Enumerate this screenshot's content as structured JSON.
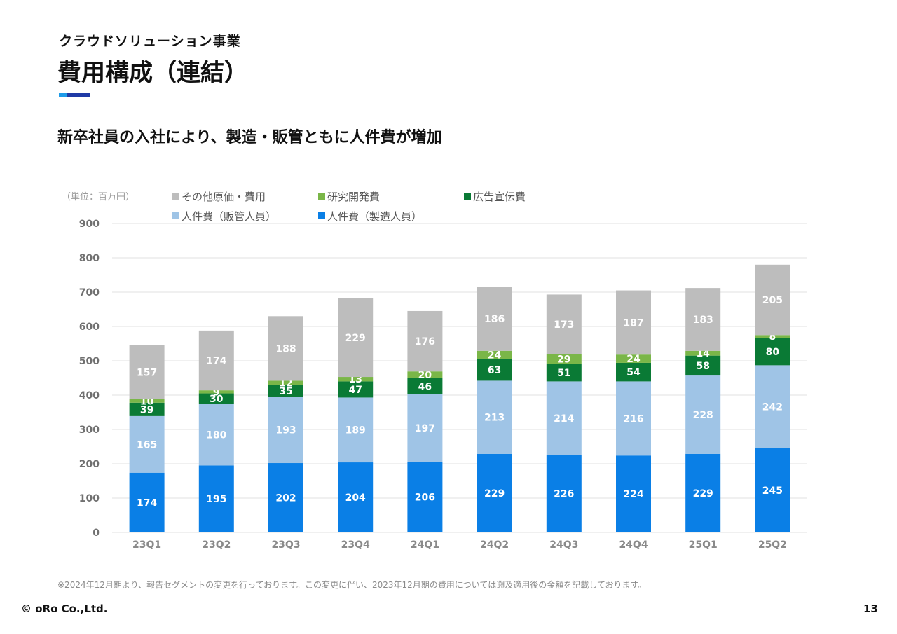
{
  "header": {
    "section": "クラウドソリューション事業",
    "title": "費用構成（連結）",
    "headline": "新卒社員の入社により、製造・販管ともに人件費が増加",
    "accent_colors": [
      "#1e9be8",
      "#1f3aa6"
    ]
  },
  "chart_data": {
    "type": "bar",
    "stacked": true,
    "unit_label": "（単位：百万円）",
    "categories": [
      "23Q1",
      "23Q2",
      "23Q3",
      "23Q4",
      "24Q1",
      "24Q2",
      "24Q3",
      "24Q4",
      "25Q1",
      "25Q2"
    ],
    "ylim": [
      0,
      900
    ],
    "yticks": [
      0,
      100,
      200,
      300,
      400,
      500,
      600,
      700,
      800,
      900
    ],
    "grid": true,
    "legend_position": "top",
    "series": [
      {
        "name": "人件費（製造人員）",
        "color": "#0a7fe6",
        "label_color": "#ffffff",
        "values": [
          174,
          195,
          202,
          204,
          206,
          229,
          226,
          224,
          229,
          245
        ]
      },
      {
        "name": "人件費（販管人員）",
        "color": "#9fc4e6",
        "label_color": "#ffffff",
        "values": [
          165,
          180,
          193,
          189,
          197,
          213,
          214,
          216,
          228,
          242
        ]
      },
      {
        "name": "広告宣伝費",
        "color": "#0a7a35",
        "label_color": "#ffffff",
        "values": [
          39,
          30,
          35,
          47,
          46,
          63,
          51,
          54,
          58,
          80
        ]
      },
      {
        "name": "研究開発費",
        "color": "#7ab648",
        "label_color": "#ffffff",
        "values": [
          10,
          9,
          12,
          13,
          20,
          24,
          29,
          24,
          14,
          8
        ]
      },
      {
        "name": "その他原価・費用",
        "color": "#bdbdbd",
        "label_color": "#ffffff",
        "values": [
          157,
          174,
          188,
          229,
          176,
          186,
          173,
          187,
          183,
          205
        ]
      }
    ]
  },
  "legend": {
    "other": "その他原価・費用",
    "rnd": "研究開発費",
    "ads": "広告宣伝費",
    "sga_staff": "人件費（販管人員）",
    "mfg_staff": "人件費（製造人員）"
  },
  "footnote": "※2024年12月期より、報告セグメントの変更を行っております。この変更に伴い、2023年12月期の費用については遡及適用後の金額を記載しております。",
  "footer": {
    "copyright": "© oRo Co.,Ltd.",
    "page_number": "13"
  }
}
